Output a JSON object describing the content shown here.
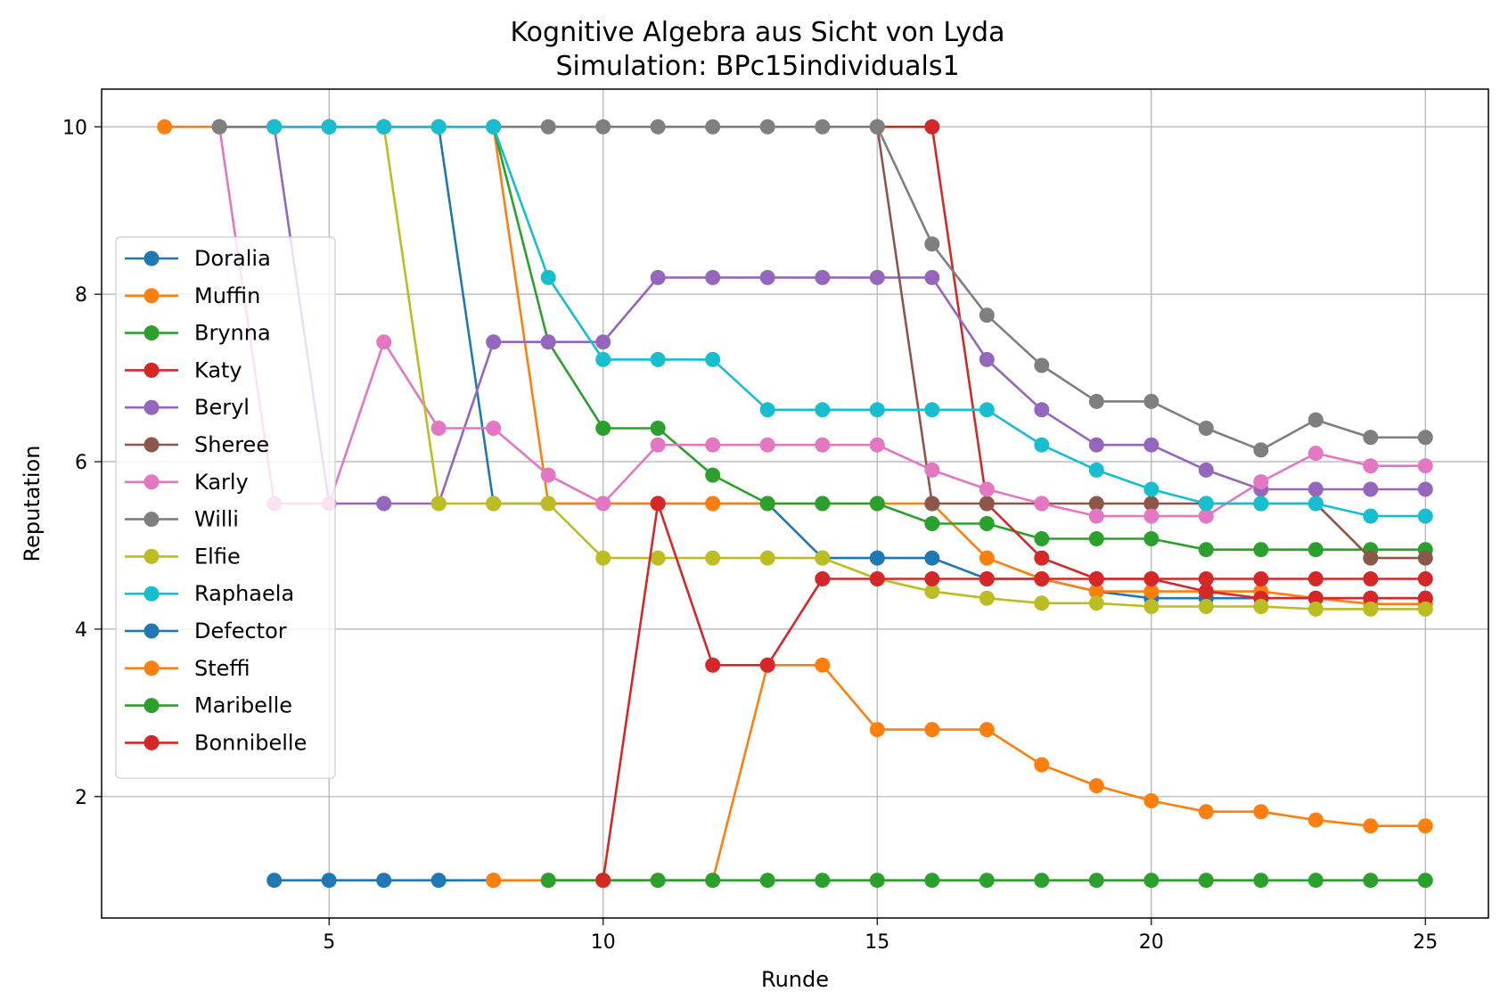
{
  "chart_data": {
    "type": "line",
    "title": "Kognitive Algebra aus Sicht von Lyda",
    "subtitle": "Simulation: BPc15individuals1",
    "xlabel": "Runde",
    "ylabel": "Reputation",
    "xlim": [
      0.85,
      26.15
    ],
    "ylim": [
      0.55,
      10.45
    ],
    "xticks": [
      5,
      10,
      15,
      20,
      25
    ],
    "yticks": [
      2,
      4,
      6,
      8,
      10
    ],
    "grid": true,
    "legend_position": "center-left",
    "series": [
      {
        "name": "Doralia",
        "color": "#1f77b4",
        "x": [
          3,
          4,
          5,
          6,
          7,
          8,
          9,
          10,
          11,
          12,
          13,
          14,
          15,
          16,
          17,
          18,
          19,
          20,
          21,
          22,
          23,
          24,
          25
        ],
        "y": [
          10,
          10,
          10,
          10,
          10,
          5.5,
          5.5,
          5.5,
          5.5,
          5.5,
          5.5,
          4.85,
          4.85,
          4.85,
          4.6,
          4.6,
          4.45,
          4.37,
          4.37,
          4.37,
          4.37,
          4.37,
          4.37
        ]
      },
      {
        "name": "Muffin",
        "color": "#ff7f0e",
        "x": [
          2,
          3,
          4,
          5,
          6,
          7,
          8,
          9,
          10,
          11,
          12,
          13,
          14,
          15,
          16,
          17,
          18,
          19,
          20,
          21,
          22,
          23,
          24,
          25
        ],
        "y": [
          10,
          10,
          10,
          10,
          10,
          10,
          10,
          5.5,
          5.5,
          5.5,
          5.5,
          5.5,
          5.5,
          5.5,
          5.5,
          4.85,
          4.6,
          4.45,
          4.45,
          4.45,
          4.45,
          4.37,
          4.3,
          4.3
        ]
      },
      {
        "name": "Brynna",
        "color": "#2ca02c",
        "x": [
          8,
          9,
          10,
          11,
          12,
          13,
          14,
          15,
          16,
          17,
          18,
          19,
          20,
          21,
          22,
          23,
          24,
          25
        ],
        "y": [
          10,
          7.43,
          6.4,
          6.4,
          5.84,
          5.5,
          5.5,
          5.5,
          5.26,
          5.26,
          5.08,
          5.08,
          5.08,
          4.95,
          4.95,
          4.95,
          4.95,
          4.95
        ]
      },
      {
        "name": "Katy",
        "color": "#d62728",
        "x": [
          15,
          16,
          17,
          18,
          19,
          20,
          21,
          22,
          23,
          24,
          25
        ],
        "y": [
          10,
          10,
          5.5,
          4.85,
          4.6,
          4.6,
          4.45,
          4.37,
          4.37,
          4.37,
          4.37
        ]
      },
      {
        "name": "Beryl",
        "color": "#9467bd",
        "x": [
          4,
          5,
          6,
          7,
          8,
          9,
          10,
          11,
          12,
          13,
          14,
          15,
          16,
          17,
          18,
          19,
          20,
          21,
          22,
          23,
          24,
          25
        ],
        "y": [
          10,
          5.5,
          5.5,
          5.5,
          7.43,
          7.43,
          7.43,
          8.2,
          8.2,
          8.2,
          8.2,
          8.2,
          8.2,
          7.22,
          6.62,
          6.2,
          6.2,
          5.9,
          5.67,
          5.67,
          5.67,
          5.67
        ]
      },
      {
        "name": "Sheree",
        "color": "#8c564b",
        "x": [
          15,
          16,
          17,
          18,
          19,
          20,
          21,
          22,
          23,
          24,
          25
        ],
        "y": [
          10,
          5.5,
          5.5,
          5.5,
          5.5,
          5.5,
          5.5,
          5.5,
          5.5,
          4.85,
          4.85
        ]
      },
      {
        "name": "Karly",
        "color": "#e377c2",
        "x": [
          3,
          4,
          5,
          6,
          7,
          8,
          9,
          10,
          11,
          12,
          13,
          14,
          15,
          16,
          17,
          18,
          19,
          20,
          21,
          22,
          23,
          24,
          25
        ],
        "y": [
          10,
          5.5,
          5.5,
          7.43,
          6.4,
          6.4,
          5.84,
          5.5,
          6.2,
          6.2,
          6.2,
          6.2,
          6.2,
          5.9,
          5.67,
          5.5,
          5.35,
          5.35,
          5.35,
          5.76,
          6.1,
          5.95,
          5.95
        ]
      },
      {
        "name": "Willi",
        "color": "#7f7f7f",
        "x": [
          3,
          4,
          5,
          6,
          7,
          8,
          9,
          10,
          11,
          12,
          13,
          14,
          15,
          16,
          17,
          18,
          19,
          20,
          21,
          22,
          23,
          24,
          25
        ],
        "y": [
          10,
          10,
          10,
          10,
          10,
          10,
          10,
          10,
          10,
          10,
          10,
          10,
          10,
          8.6,
          7.75,
          7.15,
          6.72,
          6.72,
          6.4,
          6.14,
          6.5,
          6.29,
          6.29
        ]
      },
      {
        "name": "Elfie",
        "color": "#bcbd22",
        "x": [
          6,
          7,
          8,
          9,
          10,
          11,
          12,
          13,
          14,
          15,
          16,
          17,
          18,
          19,
          20,
          21,
          22,
          23,
          24,
          25
        ],
        "y": [
          10,
          5.5,
          5.5,
          5.5,
          4.85,
          4.85,
          4.85,
          4.85,
          4.85,
          4.6,
          4.45,
          4.37,
          4.31,
          4.31,
          4.27,
          4.27,
          4.27,
          4.24,
          4.24,
          4.24
        ]
      },
      {
        "name": "Raphaela",
        "color": "#17becf",
        "x": [
          4,
          5,
          6,
          7,
          8,
          9,
          10,
          11,
          12,
          13,
          14,
          15,
          16,
          17,
          18,
          19,
          20,
          21,
          22,
          23,
          24,
          25
        ],
        "y": [
          10,
          10,
          10,
          10,
          10,
          8.2,
          7.22,
          7.22,
          7.22,
          6.62,
          6.62,
          6.62,
          6.62,
          6.62,
          6.2,
          5.9,
          5.67,
          5.5,
          5.5,
          5.5,
          5.35,
          5.35
        ]
      },
      {
        "name": "Defector",
        "color": "#1f77b4",
        "x": [
          4,
          5,
          6,
          7,
          8
        ],
        "y": [
          1,
          1,
          1,
          1,
          1
        ]
      },
      {
        "name": "Steffi",
        "color": "#ff7f0e",
        "x": [
          8,
          9,
          10,
          11,
          12,
          13,
          14,
          15,
          16,
          17,
          18,
          19,
          20,
          21,
          22,
          23,
          24,
          25
        ],
        "y": [
          1,
          1,
          1,
          1,
          1,
          3.57,
          3.57,
          2.8,
          2.8,
          2.8,
          2.38,
          2.13,
          1.95,
          1.82,
          1.82,
          1.72,
          1.65,
          1.65
        ]
      },
      {
        "name": "Maribelle",
        "color": "#2ca02c",
        "x": [
          9,
          10,
          11,
          12,
          13,
          14,
          15,
          16,
          17,
          18,
          19,
          20,
          21,
          22,
          23,
          24,
          25
        ],
        "y": [
          1,
          1,
          1,
          1,
          1,
          1,
          1,
          1,
          1,
          1,
          1,
          1,
          1,
          1,
          1,
          1,
          1
        ]
      },
      {
        "name": "Bonnibelle",
        "color": "#d62728",
        "x": [
          10,
          11,
          12,
          13,
          14,
          15,
          16,
          17,
          18,
          19,
          20,
          21,
          22,
          23,
          24,
          25
        ],
        "y": [
          1,
          5.5,
          3.57,
          3.57,
          4.6,
          4.6,
          4.6,
          4.6,
          4.6,
          4.6,
          4.6,
          4.6,
          4.6,
          4.6,
          4.6,
          4.6
        ]
      }
    ]
  }
}
